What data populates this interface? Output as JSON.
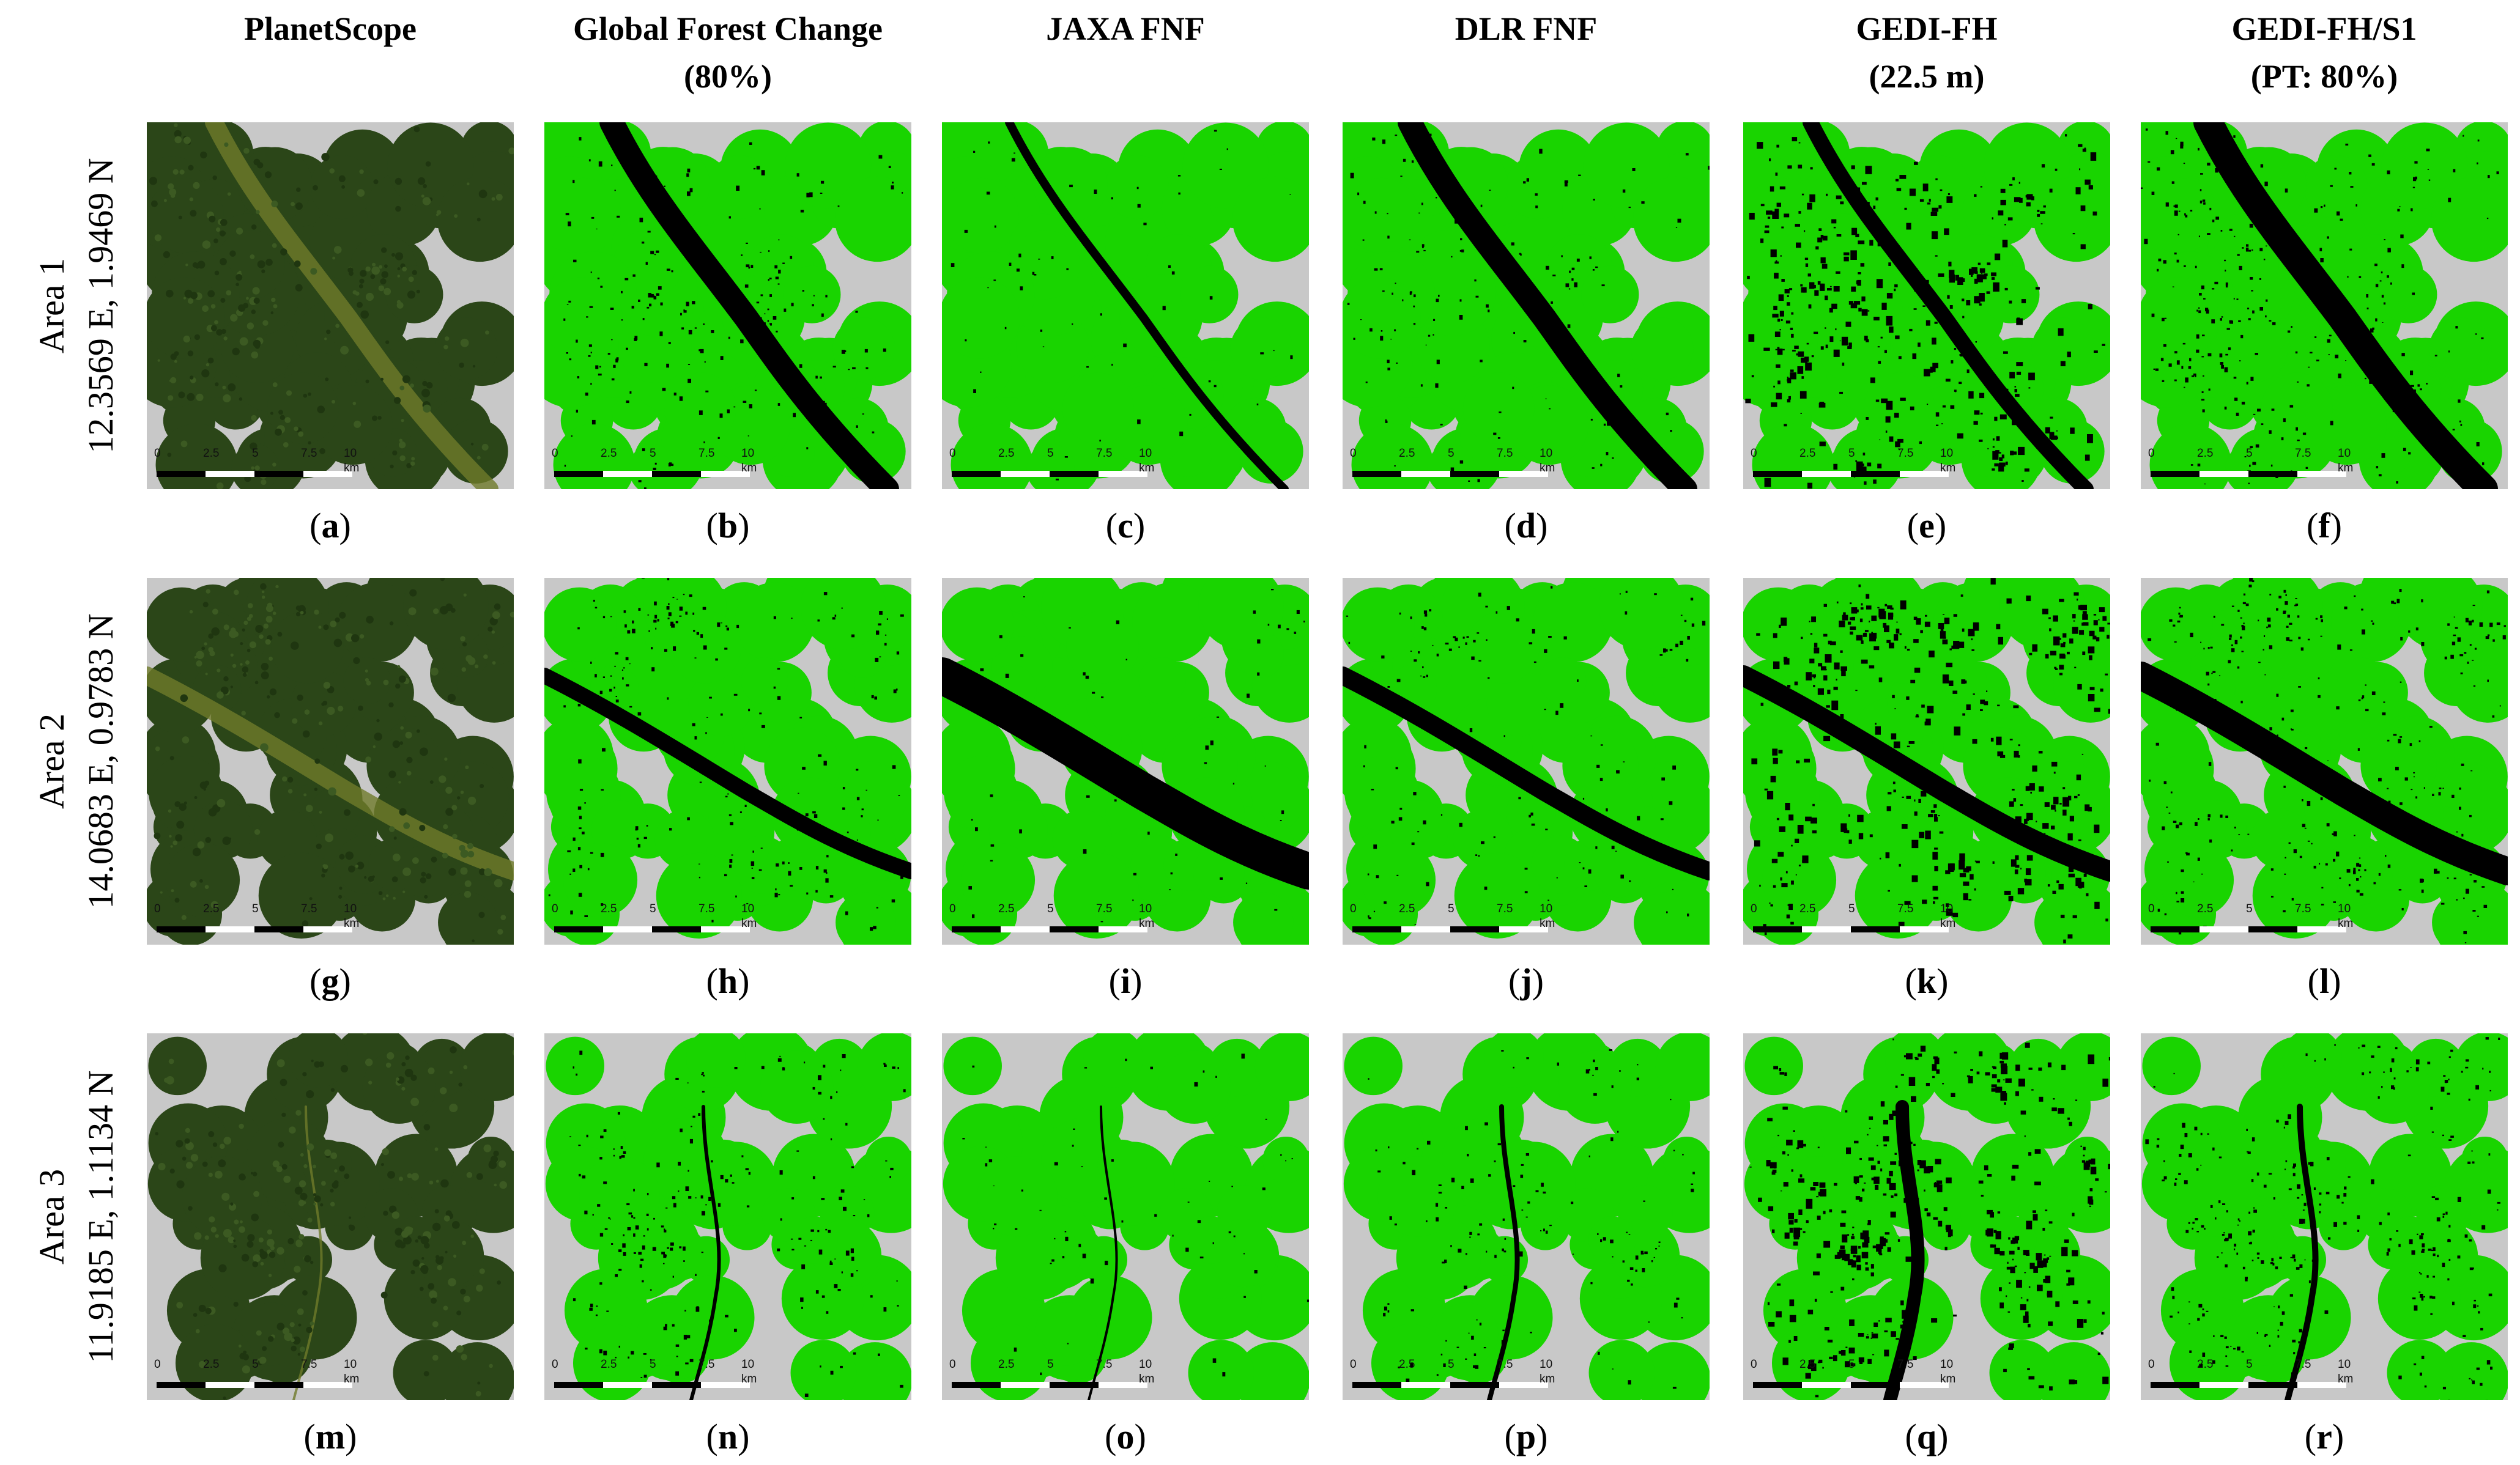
{
  "columns": [
    {
      "line1": "PlanetScope",
      "line2": ""
    },
    {
      "line1": "Global Forest Change",
      "line2": "(80%)"
    },
    {
      "line1": "JAXA FNF",
      "line2": ""
    },
    {
      "line1": "DLR FNF",
      "line2": ""
    },
    {
      "line1": "GEDI-FH",
      "line2": "(22.5 m)"
    },
    {
      "line1": "GEDI-FH/S1",
      "line2": "(PT: 80%)"
    }
  ],
  "rows": [
    {
      "area": "Area 1",
      "coords": "12.3569 E, 1.9469 N"
    },
    {
      "area": "Area 2",
      "coords": "14.0683 E, 0.9783 N"
    },
    {
      "area": "Area 3",
      "coords": "11.9185 E, 1.1134 N"
    }
  ],
  "panel_letters": [
    "a",
    "b",
    "c",
    "d",
    "e",
    "f",
    "g",
    "h",
    "i",
    "j",
    "k",
    "l",
    "m",
    "n",
    "o",
    "p",
    "q",
    "r"
  ],
  "scalebar": {
    "labels": [
      "0",
      "2.5",
      "5",
      "7.5",
      "10 km"
    ]
  },
  "colors": {
    "forest_green": "#19d400",
    "non_forest_black": "#000000",
    "no_data_grey": "#c8c8c8",
    "satellite_forest": "#2b4618",
    "satellite_river": "#6f7a2a"
  },
  "legend_note": {
    "panel_content": [
      "satellite-image",
      "forest-map",
      "forest-map",
      "forest-map",
      "forest-map",
      "forest-map"
    ]
  }
}
